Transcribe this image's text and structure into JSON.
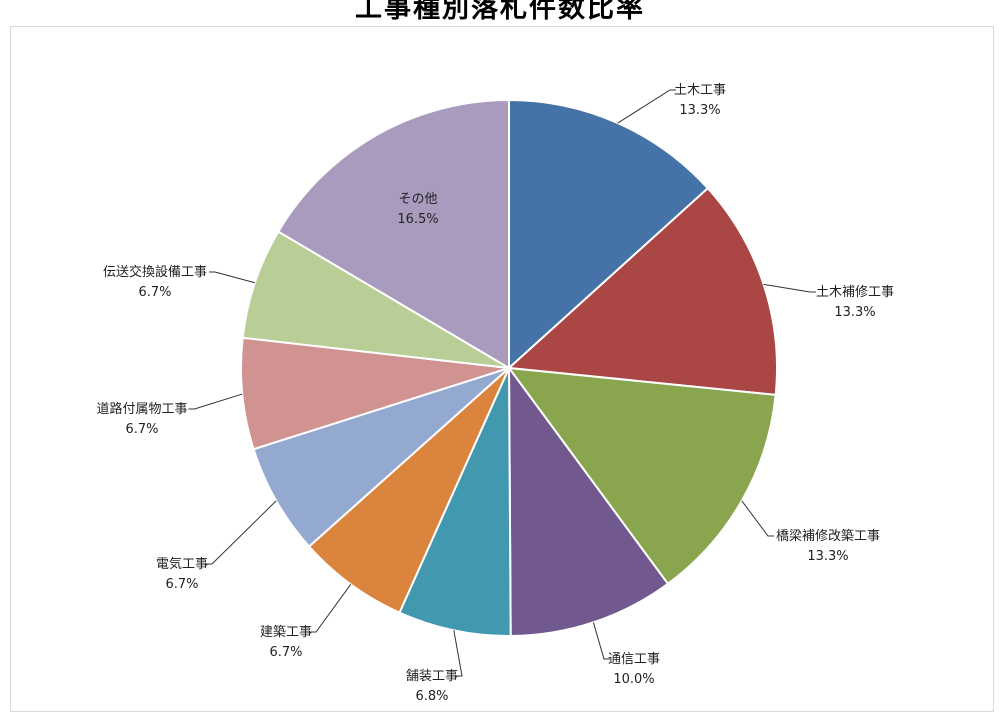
{
  "chart_data": {
    "type": "pie",
    "title": "工事種別落札件数比率",
    "slices": [
      {
        "label": "土木工事",
        "percent_label": "13.3%",
        "value": 13.3,
        "color": "#4572a7"
      },
      {
        "label": "土木補修工事",
        "percent_label": "13.3%",
        "value": 13.3,
        "color": "#aa4643"
      },
      {
        "label": "橋梁補修改築工事",
        "percent_label": "13.3%",
        "value": 13.3,
        "color": "#89a54e"
      },
      {
        "label": "通信工事",
        "percent_label": "10.0%",
        "value": 10.0,
        "color": "#71588f"
      },
      {
        "label": "舗装工事",
        "percent_label": "6.8%",
        "value": 6.8,
        "color": "#4198af"
      },
      {
        "label": "建築工事",
        "percent_label": "6.7%",
        "value": 6.7,
        "color": "#db843d"
      },
      {
        "label": "電気工事",
        "percent_label": "6.7%",
        "value": 6.7,
        "color": "#93a9cf"
      },
      {
        "label": "道路付属物工事",
        "percent_label": "6.7%",
        "value": 6.7,
        "color": "#d19392"
      },
      {
        "label": "伝送交換設備工事",
        "percent_label": "6.7%",
        "value": 6.7,
        "color": "#b9cd96"
      },
      {
        "label": "その他",
        "percent_label": "16.5%",
        "value": 16.5,
        "color": "#a99bbd"
      }
    ],
    "legend": "none"
  }
}
